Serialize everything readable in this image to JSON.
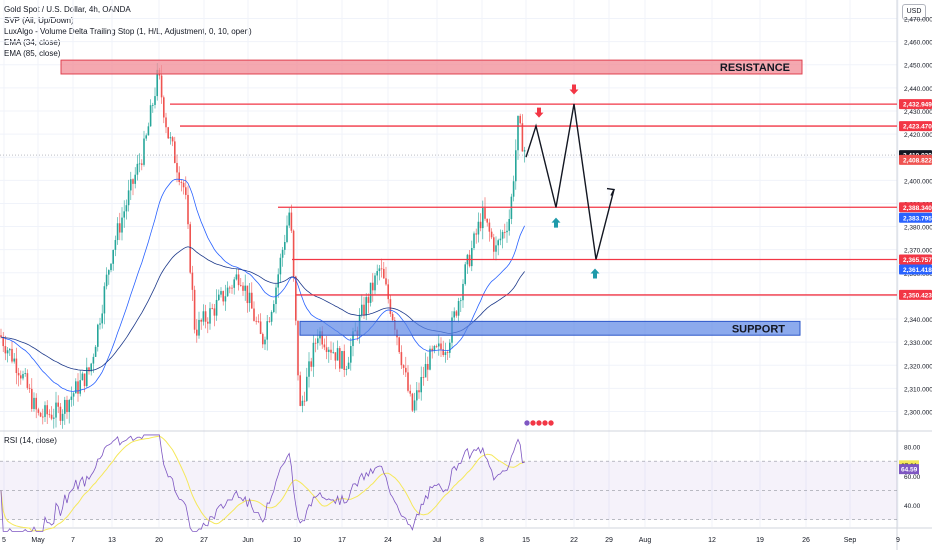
{
  "legend": {
    "title": "Gold Spot / U.S. Dollar, 4h, OANDA",
    "lines": [
      "SVP (All, Up/Down)",
      "LuxAlgo - Volume Delta Trailing Stop (1, H/L, Adjustment, 0, 10, open)",
      "EMA (34, close)",
      "EMA (85, close)"
    ]
  },
  "currency": "USD",
  "colors": {
    "resistance": "#f28b95",
    "support": "#5b86e5",
    "level_line": "#f23645",
    "last_price": "#131722",
    "up_candle": "#26a69a",
    "down_candle": "#ef5350",
    "ema34": "#2962ff",
    "ema85": "#1e3a8a",
    "rsi_line": "#7e57c2",
    "rsi_ma": "#f5e85a",
    "arrow_down": "#f23645",
    "arrow_up": "#1f9aaa",
    "projection": "#131722"
  },
  "chart_data": {
    "type": "candlestick",
    "price_axis": {
      "range": [
        2292,
        2478
      ],
      "ticks": [
        2300,
        2310,
        2320,
        2330,
        2340,
        2350,
        2360,
        2370,
        2380,
        2390,
        2400,
        2410,
        2420,
        2430,
        2440,
        2450,
        2460,
        2470
      ],
      "tick_labels": [
        "2,300.000",
        "2,310.000",
        "2,320.000",
        "2,330.000",
        "2,340.000",
        "2,350.000",
        "2,360.000",
        "2,370.000",
        "2,380.000",
        "2,390.000",
        "2,400.000",
        "2,410.000",
        "2,420.000",
        "2,430.000",
        "2,440.000",
        "2,450.000",
        "2,460.000",
        "2,470.000"
      ]
    },
    "time_axis": {
      "labels": [
        "5",
        "May",
        "7",
        "13",
        "20",
        "27",
        "Jun",
        "10",
        "17",
        "24",
        "Jul",
        "8",
        "15",
        "22",
        "29",
        "Aug",
        "12",
        "19",
        "26",
        "Sep",
        "9"
      ]
    },
    "resistance_zone": {
      "label": "RESISTANCE",
      "from": 2446,
      "to": 2452
    },
    "support_zone": {
      "label": "SUPPORT",
      "from": 2333,
      "to": 2339
    },
    "levels": [
      {
        "value": 2432.949,
        "label": "2,432.949"
      },
      {
        "value": 2423.47,
        "label": "2,423.470"
      },
      {
        "value": 2388.34,
        "label": "2,388.340"
      },
      {
        "value": 2365.757,
        "label": "2,365.757"
      },
      {
        "value": 2350.423,
        "label": "2,350.423"
      }
    ],
    "price_labels": [
      {
        "value": 2410.92,
        "label": "2,410.920",
        "kind": "last"
      },
      {
        "value": 2408.822,
        "label": "2,408.822",
        "kind": "red"
      },
      {
        "value": 2383.795,
        "label": "2,383.795",
        "kind": "blue"
      },
      {
        "value": 2361.418,
        "label": "2,361.418",
        "kind": "blue"
      }
    ],
    "projection_path": [
      2423.5,
      2388.3,
      2433.0,
      2365.8,
      2396
    ],
    "rsi": {
      "label": "RSI (14, close)",
      "range": [
        25,
        90
      ],
      "ticks": [
        80,
        60,
        40
      ],
      "tick_labels": [
        "80.00",
        "60.00",
        "40.00"
      ],
      "bands": [
        70,
        30
      ],
      "values": [
        {
          "value": 67.21,
          "label": "67.21",
          "kind": "ma"
        },
        {
          "value": 64.59,
          "label": "64.59",
          "kind": "rsi"
        }
      ]
    }
  }
}
